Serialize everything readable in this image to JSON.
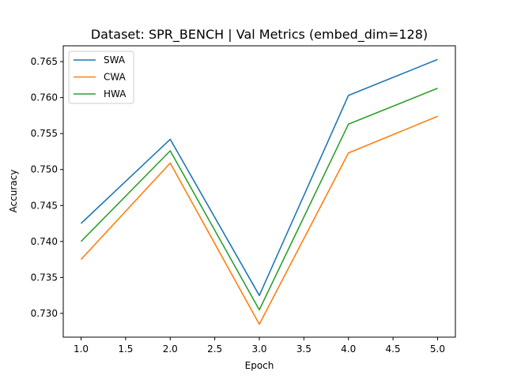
{
  "chart_data": {
    "type": "line",
    "title": "Dataset: SPR_BENCH | Val Metrics (embed_dim=128)",
    "xlabel": "Epoch",
    "ylabel": "Accuracy",
    "x": [
      1,
      2,
      3,
      4,
      5
    ],
    "xlim": [
      0.8,
      5.2
    ],
    "ylim": [
      0.7267,
      0.7672
    ],
    "xticks": [
      1.0,
      1.5,
      2.0,
      2.5,
      3.0,
      3.5,
      4.0,
      4.5,
      5.0
    ],
    "xtick_labels": [
      "1.0",
      "1.5",
      "2.0",
      "2.5",
      "3.0",
      "3.5",
      "4.0",
      "4.5",
      "5.0"
    ],
    "yticks": [
      0.73,
      0.735,
      0.74,
      0.745,
      0.75,
      0.755,
      0.76,
      0.765
    ],
    "ytick_labels": [
      "0.730",
      "0.735",
      "0.740",
      "0.745",
      "0.750",
      "0.755",
      "0.760",
      "0.765"
    ],
    "grid": false,
    "legend_position": "top-left",
    "series": [
      {
        "name": "SWA",
        "color": "#1f77b4",
        "values": [
          0.7425,
          0.7542,
          0.7325,
          0.7603,
          0.7653
        ]
      },
      {
        "name": "CWA",
        "color": "#ff7f0e",
        "values": [
          0.7375,
          0.7509,
          0.7285,
          0.7523,
          0.7574
        ]
      },
      {
        "name": "HWA",
        "color": "#2ca02c",
        "values": [
          0.74,
          0.7526,
          0.7305,
          0.7563,
          0.7613
        ]
      }
    ]
  }
}
